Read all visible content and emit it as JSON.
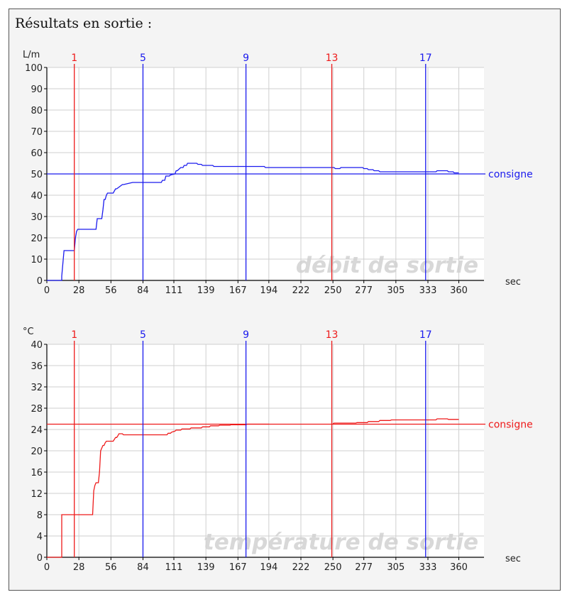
{
  "heading": "Résultats en sortie :",
  "colors": {
    "blue": "#1a1aee",
    "red": "#ee1a1a",
    "grid": "#cfcfcf"
  },
  "chart_data": [
    {
      "type": "line",
      "title": "débit de sortie",
      "ylabel": "L/m",
      "xlabel": "sec",
      "xlim": [
        0,
        382
      ],
      "ylim": [
        0,
        100
      ],
      "x_ticks": [
        "0",
        "28",
        "56",
        "84",
        "111",
        "139",
        "167",
        "194",
        "222",
        "250",
        "277",
        "305",
        "333",
        "360"
      ],
      "y_ticks": [
        "0",
        "10",
        "20",
        "30",
        "40",
        "50",
        "60",
        "70",
        "80",
        "90",
        "100"
      ],
      "grid": true,
      "setpoint": {
        "label": "consigne",
        "value": 50,
        "color": "#1a1aee"
      },
      "markers": [
        {
          "label": "1",
          "x": 24,
          "color": "#ee1a1a"
        },
        {
          "label": "5",
          "x": 84,
          "color": "#1a1aee"
        },
        {
          "label": "9",
          "x": 174,
          "color": "#1a1aee"
        },
        {
          "label": "13",
          "x": 249,
          "color": "#ee1a1a"
        },
        {
          "label": "17",
          "x": 331,
          "color": "#1a1aee"
        }
      ],
      "series": [
        {
          "color": "#1a1aee",
          "x": [
            0,
            13,
            13,
            14,
            15,
            16,
            24,
            25,
            26,
            27,
            43,
            44,
            48,
            49,
            50,
            51,
            52,
            53,
            56,
            58,
            60,
            61,
            66,
            67,
            75,
            76,
            83,
            84,
            100,
            101,
            103,
            104,
            107,
            108,
            112,
            113,
            114,
            116,
            117,
            119,
            120,
            122,
            123,
            125,
            126,
            131,
            132,
            135,
            136,
            145,
            146,
            152,
            153,
            160,
            161,
            167,
            168,
            190,
            191,
            251,
            252,
            256,
            257,
            276,
            277,
            280,
            281,
            285,
            286,
            290,
            291,
            300,
            305,
            310,
            325,
            330,
            340,
            341,
            350,
            351,
            355,
            356,
            360
          ],
          "y": [
            0,
            0,
            2,
            8,
            14,
            14,
            14,
            20,
            23,
            24,
            24,
            29,
            29,
            33,
            38,
            38,
            40,
            41,
            41,
            41,
            43,
            43,
            45,
            45,
            46,
            46,
            46,
            46,
            46,
            47,
            47,
            49,
            49,
            49.5,
            50,
            51.5,
            51.5,
            52.5,
            53,
            53,
            54,
            54,
            55,
            55,
            55,
            55,
            54.5,
            54.5,
            54,
            54,
            53.5,
            53.5,
            53.5,
            53.5,
            53.5,
            53.5,
            53.5,
            53.5,
            53,
            53,
            52.5,
            52.5,
            53,
            53,
            52.5,
            52.5,
            52,
            52,
            51.5,
            51.5,
            51,
            51,
            51,
            51,
            51,
            51,
            51,
            51.5,
            51.5,
            51,
            51,
            50.5,
            50.5
          ]
        }
      ]
    },
    {
      "type": "line",
      "title": "température de sortie",
      "ylabel": "°C",
      "xlabel": "sec",
      "xlim": [
        0,
        382
      ],
      "ylim": [
        0,
        40
      ],
      "x_ticks": [
        "0",
        "28",
        "56",
        "84",
        "111",
        "139",
        "167",
        "194",
        "222",
        "250",
        "277",
        "305",
        "333",
        "360"
      ],
      "y_ticks": [
        "0",
        "4",
        "8",
        "12",
        "16",
        "20",
        "24",
        "28",
        "32",
        "36",
        "40"
      ],
      "grid": true,
      "setpoint": {
        "label": "consigne",
        "value": 25,
        "color": "#ee1a1a"
      },
      "markers": [
        {
          "label": "1",
          "x": 24,
          "color": "#ee1a1a"
        },
        {
          "label": "5",
          "x": 84,
          "color": "#1a1aee"
        },
        {
          "label": "9",
          "x": 174,
          "color": "#1a1aee"
        },
        {
          "label": "13",
          "x": 249,
          "color": "#ee1a1a"
        },
        {
          "label": "17",
          "x": 331,
          "color": "#1a1aee"
        }
      ],
      "series": [
        {
          "color": "#ee1a1a",
          "x": [
            0,
            13,
            13,
            40,
            41,
            42,
            43,
            44,
            45,
            46,
            47,
            48,
            49,
            50,
            51,
            52,
            53,
            56,
            58,
            60,
            61,
            62,
            63,
            66,
            67,
            70,
            71,
            105,
            106,
            108,
            109,
            112,
            113,
            117,
            118,
            125,
            126,
            135,
            136,
            142,
            143,
            150,
            151,
            160,
            161,
            174,
            175,
            194
          ],
          "y": [
            0,
            0,
            8,
            8,
            12.5,
            13.5,
            14,
            14,
            14,
            16,
            20,
            20.5,
            21,
            21,
            21.5,
            21.8,
            21.8,
            21.8,
            21.8,
            22.5,
            22.5,
            22.8,
            23.2,
            23.2,
            23,
            23,
            23,
            23,
            23.3,
            23.3,
            23.5,
            23.7,
            23.9,
            23.9,
            24.1,
            24.1,
            24.3,
            24.3,
            24.5,
            24.5,
            24.7,
            24.7,
            24.8,
            24.8,
            24.9,
            24.9,
            25,
            25
          ]
        },
        {
          "color": "#ee1a1a",
          "x": [
            250,
            251,
            270,
            271,
            280,
            281,
            290,
            291,
            300,
            301,
            340,
            341,
            350,
            351,
            360
          ],
          "y": [
            25.1,
            25.2,
            25.2,
            25.3,
            25.3,
            25.5,
            25.5,
            25.7,
            25.7,
            25.8,
            25.8,
            26,
            26,
            25.9,
            25.9
          ]
        }
      ]
    }
  ]
}
